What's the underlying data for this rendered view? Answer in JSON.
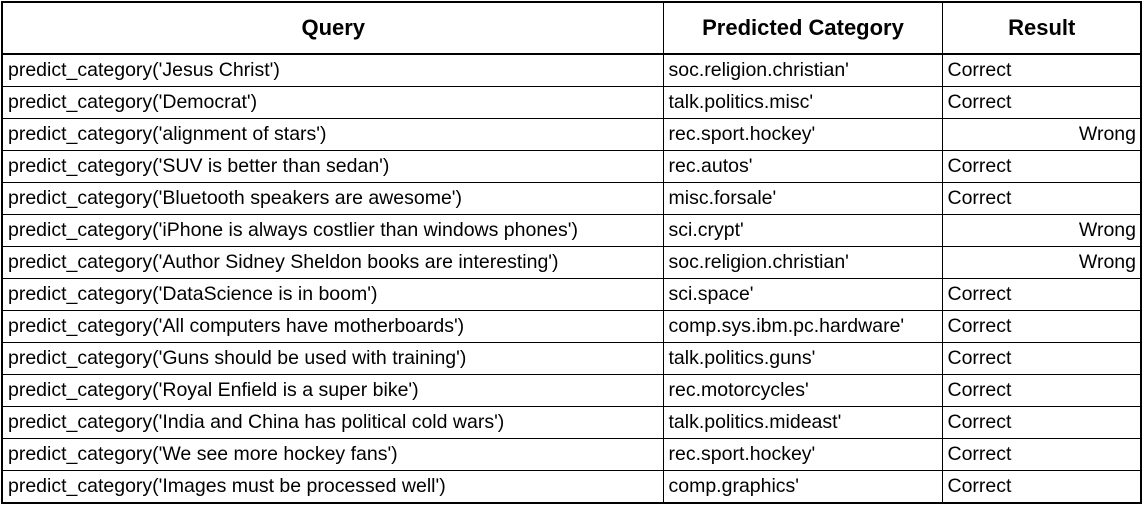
{
  "chart_data": {
    "type": "table",
    "columns": [
      "Query",
      "Predicted Category",
      "Result"
    ],
    "rows": [
      {
        "query": "predict_category('Jesus Christ')",
        "category": "soc.religion.christian'",
        "result": "Correct"
      },
      {
        "query": "predict_category('Democrat')",
        "category": "talk.politics.misc'",
        "result": "Correct"
      },
      {
        "query": "predict_category('alignment of stars')",
        "category": "rec.sport.hockey'",
        "result": "Wrong"
      },
      {
        "query": "predict_category('SUV is better than sedan')",
        "category": "rec.autos'",
        "result": "Correct"
      },
      {
        "query": "predict_category('Bluetooth speakers are awesome')",
        "category": "misc.forsale'",
        "result": "Correct"
      },
      {
        "query": "predict_category('iPhone is always costlier than windows phones')",
        "category": "sci.crypt'",
        "result": "Wrong"
      },
      {
        "query": "predict_category('Author Sidney Sheldon books are interesting')",
        "category": "soc.religion.christian'",
        "result": "Wrong"
      },
      {
        "query": "predict_category('DataScience is in boom')",
        "category": "sci.space'",
        "result": "Correct"
      },
      {
        "query": "predict_category('All computers have motherboards')",
        "category": "comp.sys.ibm.pc.hardware'",
        "result": "Correct"
      },
      {
        "query": "predict_category('Guns should be used with training')",
        "category": "talk.politics.guns'",
        "result": "Correct"
      },
      {
        "query": "predict_category('Royal Enfield is a super bike')",
        "category": "rec.motorcycles'",
        "result": "Correct"
      },
      {
        "query": "predict_category('India and China has political cold wars')",
        "category": "talk.politics.mideast'",
        "result": "Correct"
      },
      {
        "query": "predict_category('We see more hockey fans')",
        "category": "rec.sport.hockey'",
        "result": "Correct"
      },
      {
        "query": "predict_category('Images must be processed well')",
        "category": "comp.graphics'",
        "result": "Correct"
      }
    ]
  }
}
